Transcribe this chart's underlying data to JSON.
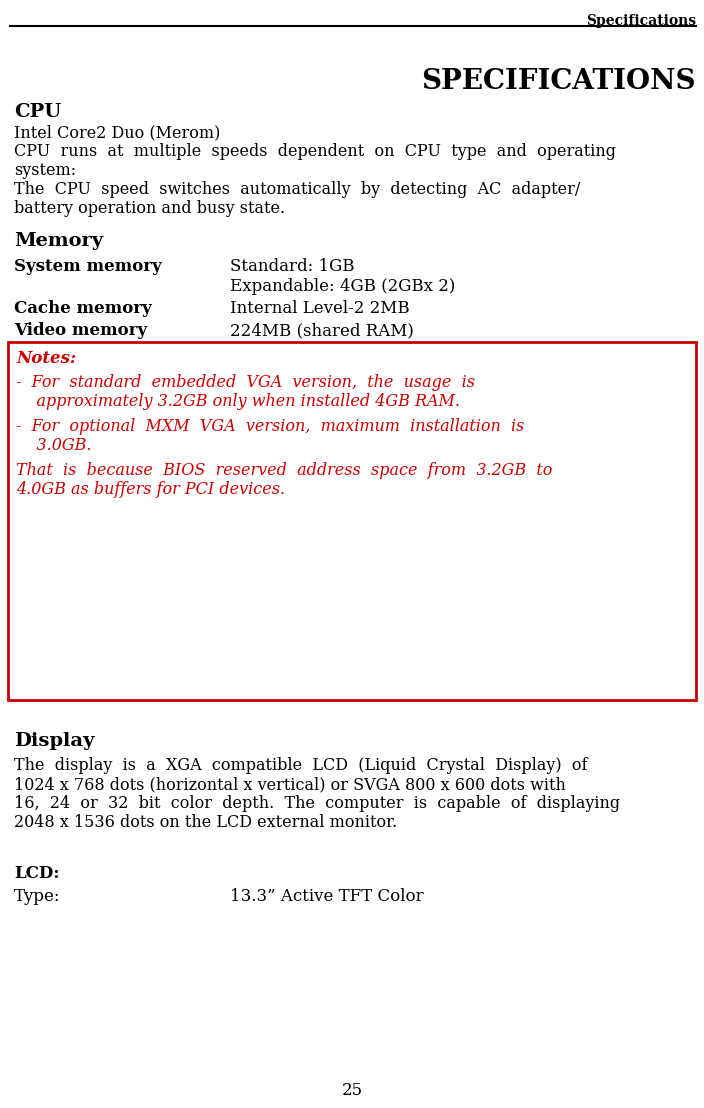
{
  "page_header": "Specifications",
  "main_title": "SPECIFICATIONS",
  "cpu_heading": "CPU",
  "cpu_line1": "Intel Core2 Duo (Merom)",
  "cpu_line2a": "CPU  runs  at  multiple  speeds  dependent  on  CPU  type  and  operating",
  "cpu_line2b": "system:",
  "cpu_line3a": "The  CPU  speed  switches  automatically  by  detecting  AC  adapter/",
  "cpu_line3b": "battery operation and busy state.",
  "memory_heading": "Memory",
  "sys_memory_label": "System memory",
  "sys_memory_val1": "Standard: 1GB",
  "sys_memory_val2": "Expandable: 4GB (2GBx 2)",
  "cache_memory_label": "Cache memory",
  "cache_memory_val": "Internal Level-2 2MB",
  "video_memory_label": "Video memory",
  "video_memory_val": "224MB (shared RAM)",
  "notes_title": "Notes:",
  "note1_line1": "-  For  standard  embedded  VGA  version,  the  usage  is",
  "note1_line2": "    approximately 3.2GB only when installed 4GB RAM.",
  "note2_line1": "-  For  optional  MXM  VGA  version,  maximum  installation  is",
  "note2_line2": "    3.0GB.",
  "note3_line1": "That  is  because  BIOS  reserved  address  space  from  3.2GB  to",
  "note3_line2": "4.0GB as buffers for PCI devices.",
  "display_heading": "Display",
  "display_text_line1": "The  display  is  a  XGA  compatible  LCD  (Liquid  Crystal  Display)  of",
  "display_text_line2": "1024 x 768 dots (horizontal x vertical) or SVGA 800 x 600 dots with",
  "display_text_line3": "16,  24  or  32  bit  color  depth.  The  computer  is  capable  of  displaying",
  "display_text_line4": "2048 x 1536 dots on the LCD external monitor.",
  "lcd_heading": "LCD:",
  "lcd_type_label": "Type:",
  "lcd_type_val": "13.3” Active TFT Color",
  "page_number": "25",
  "bg_color": "#ffffff",
  "text_color": "#000000",
  "red_color": "#cc0000",
  "note_bg_color": "#ffffff"
}
